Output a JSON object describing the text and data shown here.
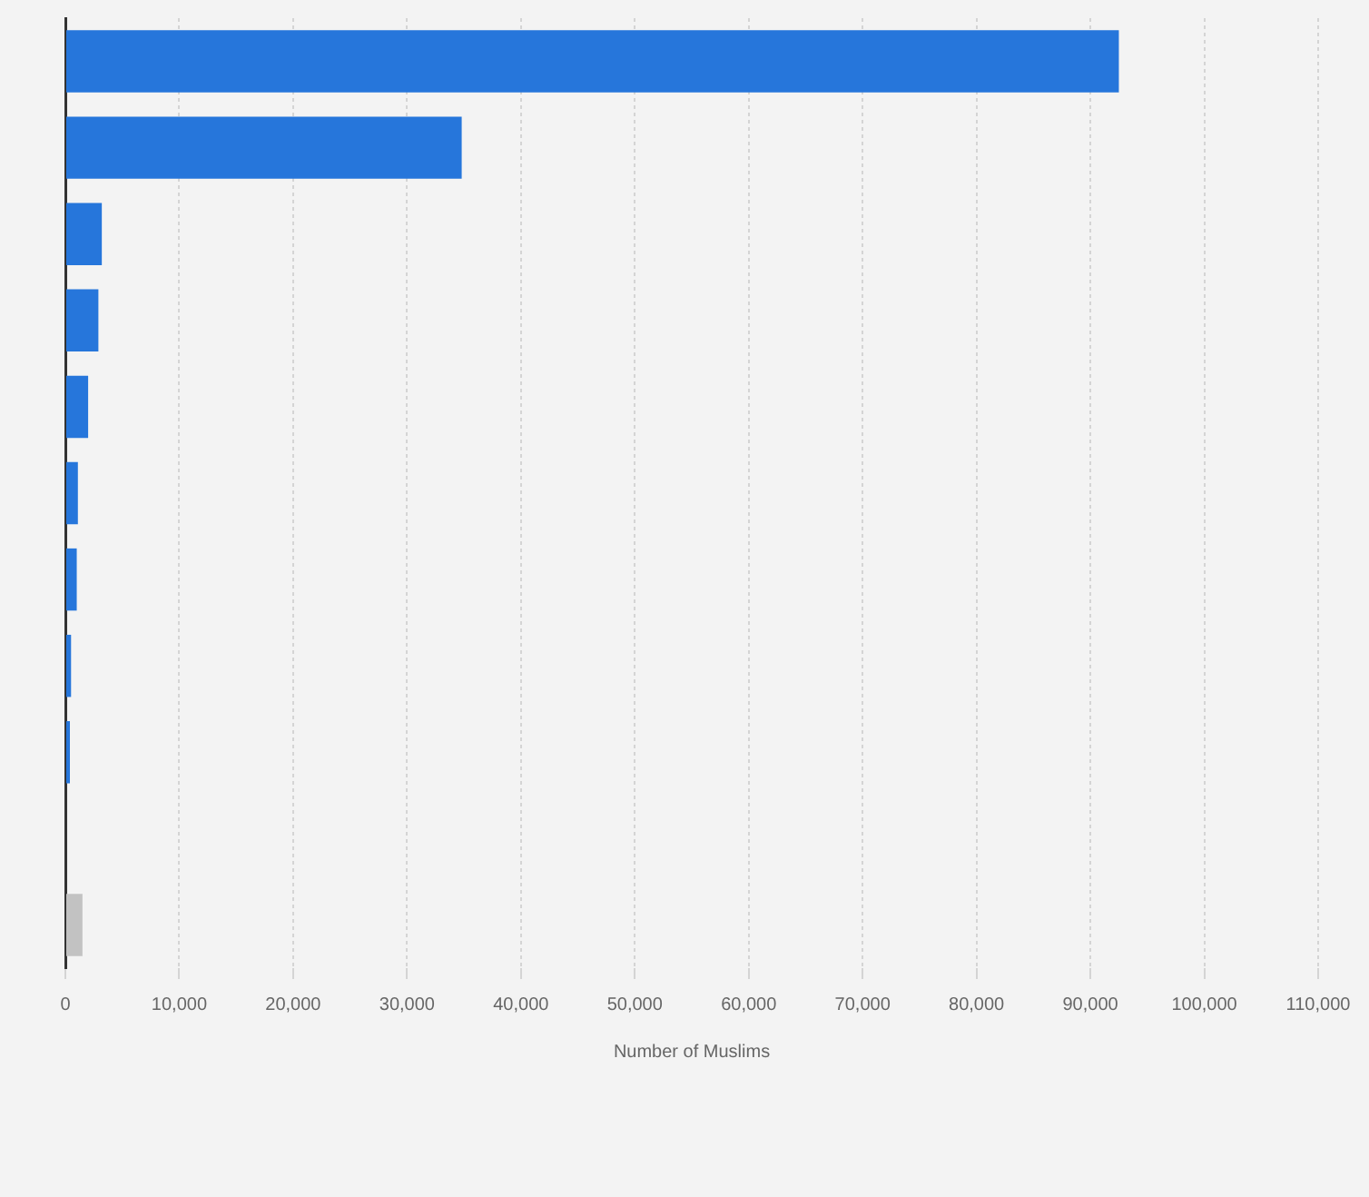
{
  "chart_data": {
    "type": "bar",
    "orientation": "horizontal",
    "xlabel": "Number of Muslims",
    "categories": [
      null,
      null,
      null,
      null,
      null,
      null,
      null,
      null,
      null,
      null,
      null
    ],
    "values": [
      92500,
      34800,
      3200,
      2900,
      2000,
      1100,
      1000,
      500,
      400,
      0,
      1500
    ],
    "colors": [
      "#2676db",
      "#2676db",
      "#2676db",
      "#2676db",
      "#2676db",
      "#2676db",
      "#2676db",
      "#2676db",
      "#2676db",
      "#2676db",
      "#c2c2c2"
    ],
    "xlim": [
      0,
      110000
    ],
    "xticks": [
      0,
      {
        "value": 10000,
        "label": "10,000"
      },
      {
        "value": 20000,
        "label": "20,000"
      },
      {
        "value": 30000,
        "label": "30,000"
      },
      {
        "value": 40000,
        "label": "40,000"
      },
      {
        "value": 50000,
        "label": "50,000"
      },
      {
        "value": 60000,
        "label": "60,000"
      },
      {
        "value": 70000,
        "label": "70,000"
      },
      {
        "value": 80000,
        "label": "80,000"
      },
      {
        "value": 90000,
        "label": "90,000"
      },
      {
        "value": 100000,
        "label": "100,000"
      },
      {
        "value": 110000,
        "label": "110,000"
      }
    ],
    "grid": "x",
    "tick_labels": "x",
    "legend": false
  }
}
